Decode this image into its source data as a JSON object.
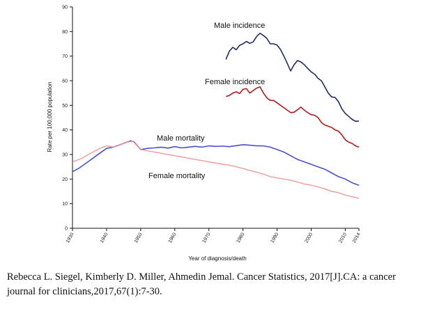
{
  "chart_data": {
    "type": "line",
    "title": "",
    "xlabel": "Year of diagnosis/death",
    "ylabel": "Rate per 100,000 population",
    "xlim": [
      1930,
      2014
    ],
    "ylim": [
      0,
      90
    ],
    "xticks": [
      {
        "value": 1930,
        "label": "1930"
      },
      {
        "value": 1940,
        "label": "1940"
      },
      {
        "value": 1950,
        "label": "1950"
      },
      {
        "value": 1960,
        "label": "1960"
      },
      {
        "value": 1970,
        "label": "1970"
      },
      {
        "value": 1980,
        "label": "1980"
      },
      {
        "value": 1990,
        "label": "1990"
      },
      {
        "value": 2000,
        "label": "2000"
      },
      {
        "value": 2010,
        "label": "2010"
      },
      {
        "value": 2014,
        "label": "2014"
      }
    ],
    "yticks": [
      0,
      10,
      20,
      30,
      40,
      50,
      60,
      70,
      80,
      90
    ],
    "series": [
      {
        "name": "Male incidence",
        "color": "#1f2a66",
        "x": [
          1975,
          1976,
          1977,
          1978,
          1979,
          1980,
          1981,
          1982,
          1983,
          1984,
          1985,
          1986,
          1987,
          1988,
          1989,
          1990,
          1991,
          1992,
          1993,
          1994,
          1995,
          1996,
          1997,
          1998,
          1999,
          2000,
          2001,
          2002,
          2003,
          2004,
          2005,
          2006,
          2007,
          2008,
          2009,
          2010,
          2011,
          2012,
          2013,
          2014
        ],
        "values": [
          68.7,
          72.0,
          73.6,
          72.6,
          74.4,
          75.0,
          76.0,
          75.2,
          75.8,
          78.0,
          79.3,
          78.4,
          77.2,
          75.0,
          75.0,
          74.5,
          72.7,
          70.0,
          67.0,
          64.0,
          66.5,
          68.2,
          67.6,
          66.5,
          65.0,
          63.6,
          62.7,
          61.0,
          60.0,
          57.5,
          55.0,
          53.4,
          53.2,
          51.5,
          48.6,
          46.7,
          45.5,
          44.3,
          43.5,
          43.6
        ]
      },
      {
        "name": "Female incidence",
        "color": "#b51a1a",
        "x": [
          1975,
          1976,
          1977,
          1978,
          1979,
          1980,
          1981,
          1982,
          1983,
          1984,
          1985,
          1986,
          1987,
          1988,
          1989,
          1990,
          1991,
          1992,
          1993,
          1994,
          1995,
          1996,
          1997,
          1998,
          1999,
          2000,
          2001,
          2002,
          2003,
          2004,
          2005,
          2006,
          2007,
          2008,
          2009,
          2010,
          2011,
          2012,
          2013,
          2014
        ],
        "values": [
          53.6,
          54.0,
          55.0,
          55.5,
          54.8,
          56.5,
          56.8,
          55.0,
          56.0,
          57.0,
          57.5,
          55.0,
          53.0,
          52.0,
          52.0,
          51.0,
          50.0,
          49.0,
          48.0,
          47.0,
          47.2,
          48.2,
          49.3,
          48.0,
          47.0,
          46.2,
          46.0,
          45.0,
          43.0,
          42.0,
          41.5,
          41.0,
          40.0,
          39.5,
          38.0,
          36.0,
          35.0,
          34.5,
          33.5,
          33.0
        ]
      },
      {
        "name": "Male mortality",
        "color": "#4a4fd8",
        "x": [
          1930,
          1932,
          1934,
          1936,
          1938,
          1940,
          1942,
          1944,
          1946,
          1947,
          1948,
          1950,
          1952,
          1954,
          1956,
          1958,
          1960,
          1962,
          1964,
          1966,
          1968,
          1970,
          1972,
          1974,
          1976,
          1978,
          1980,
          1982,
          1984,
          1986,
          1988,
          1990,
          1992,
          1994,
          1996,
          1998,
          2000,
          2002,
          2004,
          2006,
          2008,
          2010,
          2012,
          2014
        ],
        "values": [
          23.0,
          24.5,
          26.5,
          28.5,
          30.5,
          32.5,
          33.0,
          34.0,
          35.0,
          35.5,
          35.2,
          32.0,
          32.5,
          32.7,
          33.0,
          32.6,
          33.2,
          32.7,
          33.0,
          33.3,
          33.0,
          33.5,
          33.3,
          33.4,
          33.2,
          33.6,
          34.0,
          33.8,
          33.5,
          33.5,
          33.0,
          32.0,
          31.0,
          29.5,
          28.0,
          27.0,
          26.0,
          25.0,
          24.0,
          22.5,
          21.0,
          20.0,
          18.5,
          17.5
        ]
      },
      {
        "name": "Female mortality",
        "color": "#f08c8c",
        "x": [
          1930,
          1932,
          1934,
          1936,
          1938,
          1940,
          1942,
          1944,
          1946,
          1947,
          1948,
          1950,
          1952,
          1954,
          1956,
          1958,
          1960,
          1962,
          1964,
          1966,
          1968,
          1970,
          1972,
          1974,
          1976,
          1978,
          1980,
          1982,
          1984,
          1986,
          1988,
          1990,
          1992,
          1994,
          1996,
          1998,
          2000,
          2002,
          2004,
          2006,
          2008,
          2010,
          2012,
          2014
        ],
        "values": [
          27.0,
          28.0,
          29.5,
          31.0,
          32.5,
          33.5,
          33.0,
          34.0,
          35.0,
          35.8,
          35.0,
          32.0,
          31.5,
          31.0,
          30.5,
          30.0,
          29.5,
          29.0,
          28.5,
          28.0,
          27.5,
          27.0,
          26.5,
          26.0,
          25.7,
          25.0,
          24.3,
          23.5,
          22.8,
          22.0,
          21.0,
          20.5,
          20.0,
          19.5,
          18.8,
          18.0,
          17.5,
          16.8,
          16.0,
          15.0,
          14.5,
          13.5,
          12.8,
          12.2
        ]
      }
    ],
    "labels": [
      {
        "text": "Male incidence",
        "series": 0
      },
      {
        "text": "Female incidence",
        "series": 1
      },
      {
        "text": "Male mortality",
        "series": 2
      },
      {
        "text": "Female mortality",
        "series": 3
      }
    ]
  },
  "caption": "Rebecca L. Siegel, Kimberly D. Miller, Ahmedin Jemal. Cancer Statistics, 2017[J].CA: a cancer journal for clinicians,2017,67(1):7-30."
}
